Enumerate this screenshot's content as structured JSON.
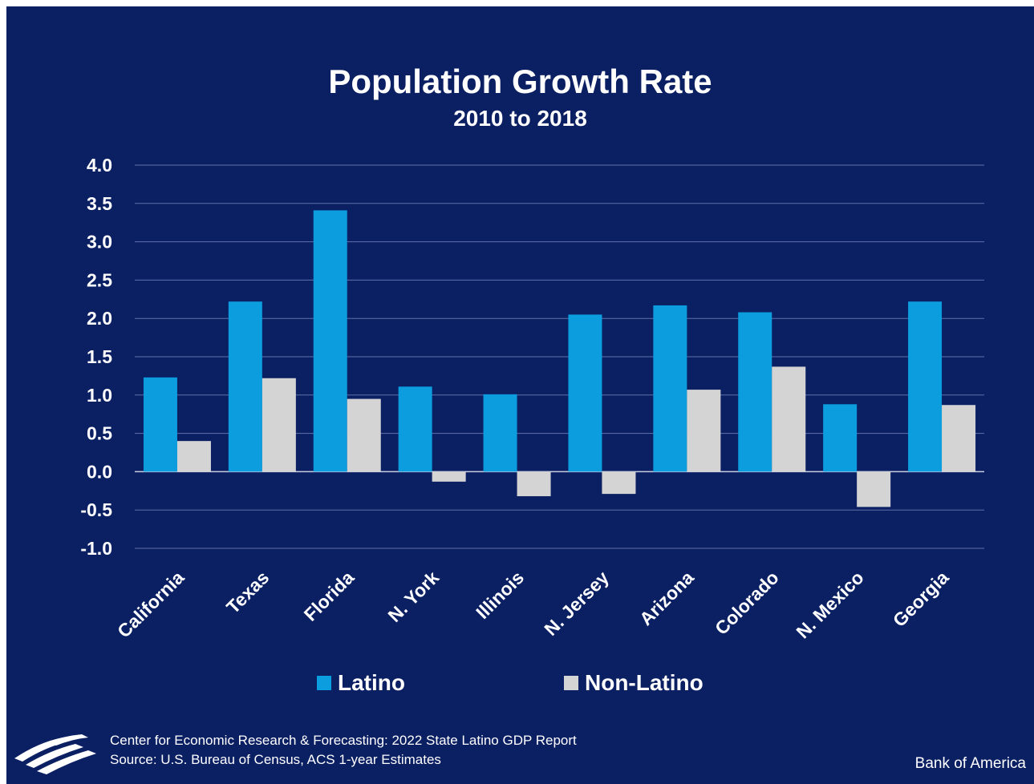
{
  "colors": {
    "background": "#0b1f63",
    "latino": "#0c9ddf",
    "non_latino": "#d4d4d4",
    "grid": "#6070a8",
    "text": "#ffffff"
  },
  "legend": [
    {
      "name": "Latino",
      "color_key": "latino"
    },
    {
      "name": "Non-Latino",
      "color_key": "non_latino"
    }
  ],
  "footer": {
    "line1": "Center for Economic Research & Forecasting: 2022 State Latino GDP Report",
    "line2": "Source: U.S. Bureau of Census, ACS 1-year Estimates"
  },
  "brand": {
    "name": "Bank of America",
    "logo_icon": "bank-of-america-flag-icon"
  },
  "chart_data": {
    "type": "bar",
    "title": "Population Growth Rate",
    "subtitle": "2010 to 2018",
    "xlabel": "",
    "ylabel": "",
    "ylim": [
      -1.0,
      4.0
    ],
    "yticks": [
      "4.0",
      "3.5",
      "3.0",
      "2.5",
      "2.0",
      "1.5",
      "1.0",
      "0.5",
      "0.0",
      "-0.5",
      "-1.0"
    ],
    "ytick_values": [
      4.0,
      3.5,
      3.0,
      2.5,
      2.0,
      1.5,
      1.0,
      0.5,
      0.0,
      -0.5,
      -1.0
    ],
    "grid": true,
    "legend_position": "bottom",
    "categories": [
      "California",
      "Texas",
      "Florida",
      "N. York",
      "Illinois",
      "N. Jersey",
      "Arizona",
      "Colorado",
      "N. Mexico",
      "Georgia"
    ],
    "series": [
      {
        "name": "Latino",
        "values": [
          1.23,
          2.22,
          3.41,
          1.11,
          1.01,
          2.05,
          2.17,
          2.08,
          0.88,
          2.22
        ]
      },
      {
        "name": "Non-Latino",
        "values": [
          0.4,
          1.22,
          0.95,
          -0.13,
          -0.32,
          -0.29,
          1.07,
          1.37,
          -0.46,
          0.87
        ]
      }
    ]
  }
}
